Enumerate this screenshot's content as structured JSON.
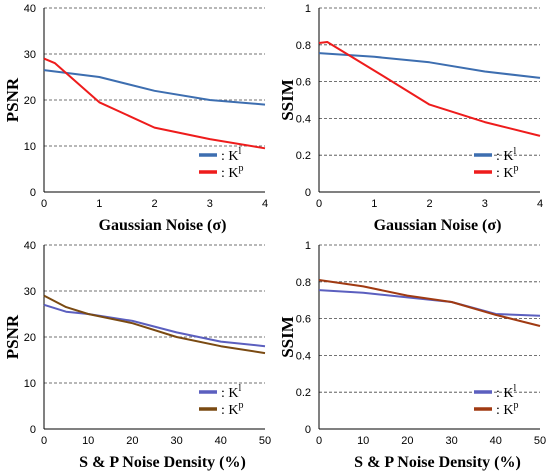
{
  "chart_data": [
    {
      "type": "line",
      "xlabel": "Gaussian Noise (σ)",
      "ylabel": "PSNR",
      "xlim": [
        0,
        4
      ],
      "ylim": [
        0,
        40
      ],
      "xticks": [
        0,
        1,
        2,
        3,
        4
      ],
      "yticks": [
        0,
        10,
        20,
        30,
        40
      ],
      "grid": "horizontal dashed",
      "legend": "bottom-right",
      "series": [
        {
          "name": "K",
          "sup": "l",
          "color": "#3d6eb0",
          "x": [
            0,
            1,
            2,
            3,
            4
          ],
          "y": [
            26.5,
            25,
            22,
            20,
            19
          ]
        },
        {
          "name": "K",
          "sup": "p",
          "color": "#ee1c1c",
          "x": [
            0,
            0.2,
            1,
            2,
            3,
            4
          ],
          "y": [
            29,
            28,
            19.5,
            14,
            11.5,
            9.5
          ]
        }
      ]
    },
    {
      "type": "line",
      "xlabel": "Gaussian Noise (σ)",
      "ylabel": "SSIM",
      "xlim": [
        0,
        4
      ],
      "ylim": [
        0,
        1
      ],
      "xticks": [
        0,
        1,
        2,
        3,
        4
      ],
      "yticks": [
        0,
        0.2,
        0.4,
        0.6,
        0.8,
        1
      ],
      "grid": "horizontal dashed",
      "legend": "bottom-right",
      "series": [
        {
          "name": "K",
          "sup": "l",
          "color": "#3d6eb0",
          "x": [
            0,
            1,
            2,
            3,
            4
          ],
          "y": [
            0.755,
            0.735,
            0.705,
            0.655,
            0.62
          ]
        },
        {
          "name": "K",
          "sup": "p",
          "color": "#ee1c1c",
          "x": [
            0,
            0.15,
            1,
            2,
            3,
            4
          ],
          "y": [
            0.81,
            0.815,
            0.66,
            0.475,
            0.38,
            0.305
          ]
        }
      ]
    },
    {
      "type": "line",
      "xlabel": "S & P Noise Density (%)",
      "ylabel": "PSNR",
      "xlim": [
        0,
        50
      ],
      "ylim": [
        0,
        40
      ],
      "xticks": [
        0,
        10,
        20,
        30,
        40,
        50
      ],
      "yticks": [
        0,
        10,
        20,
        30,
        40
      ],
      "grid": "horizontal dashed",
      "legend": "bottom-right",
      "series": [
        {
          "name": "K",
          "sup": "l",
          "color": "#5b5fbf",
          "x": [
            0,
            5,
            10,
            20,
            30,
            40,
            50
          ],
          "y": [
            27,
            25.5,
            25,
            23.5,
            21,
            19,
            18
          ]
        },
        {
          "name": "K",
          "sup": "p",
          "color": "#7a4a12",
          "x": [
            0,
            5,
            10,
            20,
            30,
            40,
            50
          ],
          "y": [
            29,
            26.5,
            25,
            23,
            20,
            18,
            16.5
          ]
        }
      ]
    },
    {
      "type": "line",
      "xlabel": "S & P Noise Density (%)",
      "ylabel": "SSIM",
      "xlim": [
        0,
        50
      ],
      "ylim": [
        0,
        1
      ],
      "xticks": [
        0,
        10,
        20,
        30,
        40,
        50
      ],
      "yticks": [
        0,
        0.2,
        0.4,
        0.6,
        0.8,
        1
      ],
      "grid": "horizontal dashed",
      "legend": "bottom-right",
      "series": [
        {
          "name": "K",
          "sup": "l",
          "color": "#5b5fbf",
          "x": [
            0,
            10,
            20,
            30,
            40,
            50
          ],
          "y": [
            0.755,
            0.74,
            0.715,
            0.69,
            0.625,
            0.615
          ]
        },
        {
          "name": "K",
          "sup": "p",
          "color": "#a03a12",
          "x": [
            0,
            10,
            20,
            30,
            40,
            50
          ],
          "y": [
            0.81,
            0.775,
            0.725,
            0.69,
            0.62,
            0.56
          ]
        }
      ]
    }
  ]
}
